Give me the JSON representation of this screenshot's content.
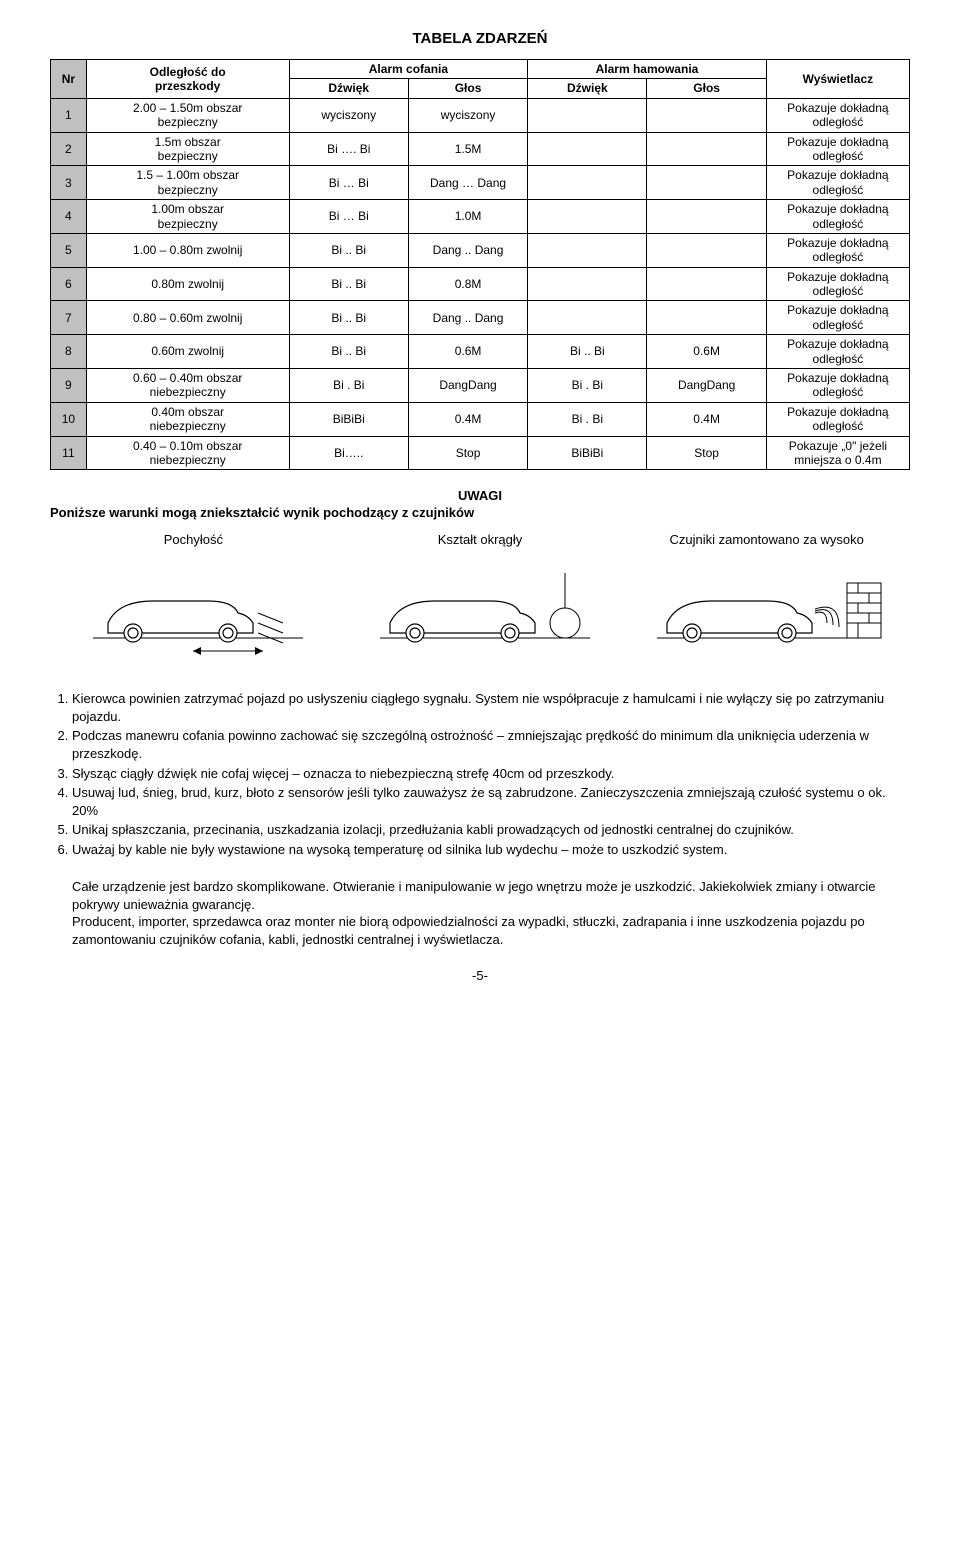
{
  "title": "TABELA ZDARZEŃ",
  "table": {
    "head": {
      "nr": "Nr",
      "range": "Odległość do\nprzeszkody",
      "alarm_rev": "Alarm cofania",
      "alarm_brake": "Alarm hamowania",
      "disp": "Wyświetlacz",
      "sound": "Dźwięk",
      "voice": "Głos"
    },
    "rows": [
      {
        "nr": "1",
        "range": "2.00 – 1.50m obszar\nbezpieczny",
        "rs": "wyciszony",
        "rv": "wyciszony",
        "bs": "",
        "bv": "",
        "disp": "Pokazuje dokładną odległość"
      },
      {
        "nr": "2",
        "range": "1.5m obszar\nbezpieczny",
        "rs": "Bi …. Bi",
        "rv": "1.5M",
        "bs": "",
        "bv": "",
        "disp": "Pokazuje dokładną odległość"
      },
      {
        "nr": "3",
        "range": "1.5 – 1.00m obszar\nbezpieczny",
        "rs": "Bi … Bi",
        "rv": "Dang … Dang",
        "bs": "",
        "bv": "",
        "disp": "Pokazuje dokładną odległość"
      },
      {
        "nr": "4",
        "range": "1.00m obszar\nbezpieczny",
        "rs": "Bi … Bi",
        "rv": "1.0M",
        "bs": "",
        "bv": "",
        "disp": "Pokazuje dokładną odległość"
      },
      {
        "nr": "5",
        "range": "1.00 – 0.80m zwolnij",
        "rs": "Bi .. Bi",
        "rv": "Dang .. Dang",
        "bs": "",
        "bv": "",
        "disp": "Pokazuje dokładną odległość"
      },
      {
        "nr": "6",
        "range": "0.80m zwolnij",
        "rs": "Bi .. Bi",
        "rv": "0.8M",
        "bs": "",
        "bv": "",
        "disp": "Pokazuje dokładną odległość"
      },
      {
        "nr": "7",
        "range": "0.80 – 0.60m zwolnij",
        "rs": "Bi .. Bi",
        "rv": "Dang .. Dang",
        "bs": "",
        "bv": "",
        "disp": "Pokazuje dokładną odległość"
      },
      {
        "nr": "8",
        "range": "0.60m zwolnij",
        "rs": "Bi .. Bi",
        "rv": "0.6M",
        "bs": "Bi .. Bi",
        "bv": "0.6M",
        "disp": "Pokazuje dokładną odległość"
      },
      {
        "nr": "9",
        "range": "0.60 – 0.40m obszar\nniebezpieczny",
        "rs": "Bi . Bi",
        "rv": "DangDang",
        "bs": "Bi . Bi",
        "bv": "DangDang",
        "disp": "Pokazuje dokładną odległość"
      },
      {
        "nr": "10",
        "range": "0.40m obszar\nniebezpieczny",
        "rs": "BiBiBi",
        "rv": "0.4M",
        "bs": "Bi . Bi",
        "bv": "0.4M",
        "disp": "Pokazuje dokładną odległość"
      },
      {
        "nr": "11",
        "range": "0.40 – 0.10m obszar\nniebezpieczny",
        "rs": "Bi…..",
        "rv": "Stop",
        "bs": "BiBiBi",
        "bv": "Stop",
        "disp": "Pokazuje „0\" jeżeli mniejsza o 0.4m"
      }
    ],
    "colors": {
      "header_bg": "#c0c0c0"
    }
  },
  "uwagi": {
    "heading": "UWAGI",
    "subheading": "Poniższe warunki mogą zniekształcić wynik pochodzący z czujników",
    "imgs": [
      "Pochyłość",
      "Kształt okrągły",
      "Czujniki zamontowano za wysoko"
    ]
  },
  "notes": {
    "items": [
      "Kierowca powinien zatrzymać pojazd po usłyszeniu ciągłego sygnału. System nie współpracuje z hamulcami i nie wyłączy się po zatrzymaniu pojazdu.",
      "Podczas manewru cofania powinno zachować się szczególną ostrożność – zmniejszając prędkość do minimum dla uniknięcia uderzenia w przeszkodę.",
      "Słysząc ciągły dźwięk nie cofaj więcej – oznacza to niebezpieczną strefę 40cm od przeszkody.",
      "Usuwaj lud, śnieg, brud, kurz, błoto z sensorów jeśli tylko zauważysz że są zabrudzone. Zanieczyszczenia zmniejszają czułość systemu o ok. 20%",
      "Unikaj spłaszczania, przecinania, uszkadzania izolacji, przedłużania kabli prowadzących od jednostki centralnej do czujników.",
      "Uważaj by kable nie były wystawione na wysoką temperaturę od silnika lub wydechu – może to uszkodzić system."
    ],
    "tail": [
      "Całe urządzenie jest bardzo skomplikowane. Otwieranie i manipulowanie w jego wnętrzu może je uszkodzić. Jakiekolwiek zmiany i otwarcie pokrywy unieważnia gwarancję.",
      "Producent, importer, sprzedawca oraz monter nie biorą odpowiedzialności za wypadki, stłuczki, zadrapania i inne uszkodzenia pojazdu po zamontowaniu czujników cofania, kabli, jednostki centralnej i wyświetlacza."
    ]
  },
  "page_number": "-5-"
}
